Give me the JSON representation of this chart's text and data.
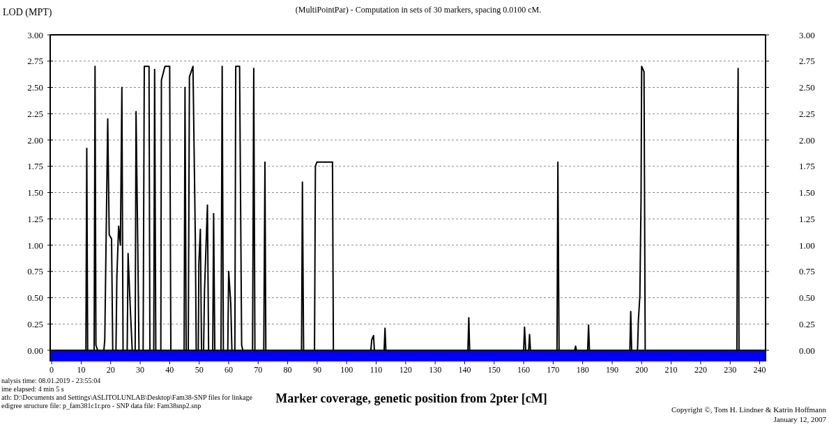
{
  "chart_data": {
    "type": "line",
    "title": "(MultiPointPar) - Computation in sets of 30 markers, spacing 0.0100 cM.",
    "ylabel": "LOD (MPT)",
    "xlabel": "Marker coverage, genetic position from 2pter [cM]",
    "annotations": [
      "nalysis time: 08.01.2019 - 23:55:04",
      "ime elapsed:  4 min 5 s",
      "ath: D:\\Documents and Settings\\ASLITOLUNLAB\\Desktop\\Fam38-SNP files for linkage",
      "edigree structure file: p_fam381c1r.pro - SNP data file: Fam38snp2.snp",
      "Copyright ©, Tom H. Lindner & Katrin Hoffmann",
      "January 12, 2007"
    ],
    "xlim": [
      -0.5,
      242
    ],
    "xticks": [
      0,
      10,
      20,
      30,
      40,
      50,
      60,
      70,
      80,
      90,
      100,
      110,
      120,
      130,
      140,
      150,
      160,
      170,
      180,
      190,
      200,
      210,
      220,
      230,
      240
    ],
    "ylim": [
      0,
      3
    ],
    "yticks": [
      {
        "value": 0,
        "label": "0.00"
      },
      {
        "value": 0.25,
        "label": "0.25"
      },
      {
        "value": 0.5,
        "label": "0.50"
      },
      {
        "value": 0.75,
        "label": "0.75"
      },
      {
        "value": 1,
        "label": "1.00"
      },
      {
        "value": 1.25,
        "label": "1.25"
      },
      {
        "value": 1.5,
        "label": "1.50"
      },
      {
        "value": 1.75,
        "label": "1.75"
      },
      {
        "value": 2,
        "label": "2.00"
      },
      {
        "value": 2.25,
        "label": "2.25"
      },
      {
        "value": 2.5,
        "label": "2.50"
      },
      {
        "value": 2.75,
        "label": "2.75"
      },
      {
        "value": 3,
        "label": "3.00"
      }
    ],
    "y2lim": [
      0,
      3
    ],
    "y2ticks": [
      {
        "value": 0,
        "label": "0.00"
      },
      {
        "value": 0.25,
        "label": "0.25"
      },
      {
        "value": 0.5,
        "label": "0.50"
      },
      {
        "value": 0.75,
        "label": "0.75"
      },
      {
        "value": 1,
        "label": "1.00"
      },
      {
        "value": 1.25,
        "label": "1.25"
      },
      {
        "value": 1.5,
        "label": "1.50"
      },
      {
        "value": 1.75,
        "label": "1.75"
      },
      {
        "value": 2,
        "label": "2.00"
      },
      {
        "value": 2.25,
        "label": "2.25"
      },
      {
        "value": 2.5,
        "label": "2.50"
      },
      {
        "value": 2.75,
        "label": "2.75"
      },
      {
        "value": 3,
        "label": "3.00"
      }
    ],
    "grid": "y",
    "series": [
      {
        "color": "#000000",
        "x": [
          0,
          11.6,
          11.9,
          12.2,
          14.4,
          14.7,
          15.0,
          15.6,
          17.7,
          18.0,
          19.0,
          19.5,
          20.3,
          20.7,
          21.8,
          22.1,
          22.7,
          23.3,
          23.8,
          24.2,
          25.6,
          25.9,
          26.5,
          26.9,
          27.3,
          28.3,
          28.6,
          29.2,
          29.6,
          31.0,
          31.4,
          33.0,
          33.3,
          34.6,
          34.9,
          35.3,
          37.0,
          37.2,
          38.4,
          40.0,
          40.4,
          44.9,
          45.2,
          45.6,
          46.3,
          46.7,
          47.9,
          48.7,
          49.0,
          49.7,
          49.9,
          50.4,
          50.8,
          51.5,
          51.8,
          52.8,
          53.2,
          54.6,
          54.9,
          55.3,
          57.4,
          57.8,
          58.2,
          59.7,
          60.0,
          60.7,
          61.1,
          62.1,
          62.4,
          63.7,
          64.4,
          64.8,
          68.1,
          68.5,
          68.9,
          71.9,
          72.3,
          72.6,
          84.7,
          85.0,
          85.4,
          89.1,
          89.4,
          89.9,
          95.2,
          95.5,
          108.2,
          108.5,
          109.1,
          109.4,
          112.7,
          113.0,
          113.3,
          141.1,
          141.4,
          141.7,
          160.0,
          160.3,
          160.7,
          161.7,
          162.0,
          162.3,
          171.3,
          171.6,
          172.0,
          177.3,
          177.6,
          177.9,
          181.7,
          182.0,
          182.3,
          196.0,
          196.3,
          196.6,
          198.6,
          198.9,
          199.4,
          199.8,
          200.0,
          200.8,
          201.2,
          232.3,
          232.5,
          232.7,
          233.0,
          240
        ],
        "values": [
          0,
          0,
          1.92,
          0,
          0,
          2.7,
          0.05,
          0,
          0,
          0.1,
          2.2,
          1.1,
          1.06,
          0,
          0,
          0.7,
          1.18,
          1.0,
          2.5,
          0,
          0,
          0.92,
          0.5,
          0.25,
          0,
          0,
          2.27,
          0.97,
          0,
          0,
          2.7,
          2.7,
          0,
          0,
          2.67,
          0,
          0,
          2.57,
          2.7,
          2.7,
          0,
          0,
          2.5,
          0,
          0,
          2.6,
          2.7,
          1.06,
          0,
          0,
          0.83,
          1.15,
          0,
          0,
          0.56,
          1.38,
          0,
          0,
          1.3,
          0,
          0,
          2.7,
          0,
          0,
          0.75,
          0.45,
          0,
          0,
          2.7,
          2.7,
          0.05,
          0,
          0,
          2.68,
          0,
          0,
          1.79,
          0,
          0,
          1.6,
          0,
          0,
          1.75,
          1.79,
          1.79,
          0,
          0,
          0.1,
          0.14,
          0,
          0,
          0.21,
          0,
          0,
          0.31,
          0,
          0,
          0.22,
          0,
          0,
          0.15,
          0,
          0,
          1.79,
          0,
          0,
          0.04,
          0,
          0,
          0.24,
          0,
          0,
          0.37,
          0,
          0,
          0.29,
          0.52,
          1.45,
          2.7,
          2.65,
          0,
          0,
          1.88,
          2.68,
          0,
          0
        ]
      }
    ]
  }
}
